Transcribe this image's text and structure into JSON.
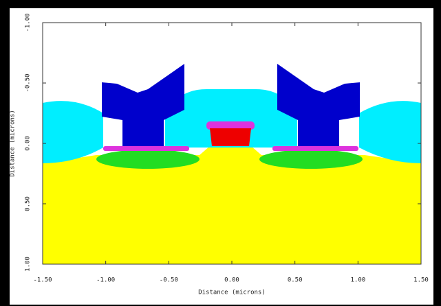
{
  "chart_data": {
    "type": "structure",
    "xlabel": "Distance (microns)",
    "ylabel": "Distance (microns)",
    "xlim": [
      -1.5,
      1.5
    ],
    "ylim": [
      1.0,
      -1.0
    ],
    "xticks": [
      {
        "value": -1.5,
        "label": "-1.50"
      },
      {
        "value": -1.0,
        "label": "-1.00"
      },
      {
        "value": -0.5,
        "label": "-0.50"
      },
      {
        "value": 0,
        "label": "0.00"
      },
      {
        "value": 0.5,
        "label": "0.50"
      },
      {
        "value": 1.0,
        "label": "1.00"
      },
      {
        "value": 1.5,
        "label": "1.50"
      }
    ],
    "yticks": [
      {
        "value": -1.0,
        "label": "-1.00"
      },
      {
        "value": -0.5,
        "label": "-0.50"
      },
      {
        "value": 0,
        "label": "0.00"
      },
      {
        "value": 0.5,
        "label": "0.50"
      },
      {
        "value": 1.0,
        "label": "1.00"
      }
    ]
  }
}
